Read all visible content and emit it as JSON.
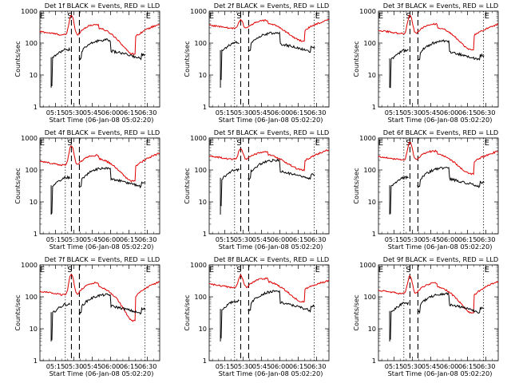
{
  "chart_data": {
    "type": "line",
    "ylabel": "Counts/sec",
    "xlabel": "Start Time (06-Jan-08 05:02:20)",
    "y_scale": "log",
    "ylim": [
      1,
      1000
    ],
    "y_tick_labels": [
      "1",
      "10",
      "100",
      "1000"
    ],
    "x_tick_labels": [
      "05:15",
      "05:30",
      "05:45",
      "06:00",
      "06:15",
      "06:30"
    ],
    "marker_letters": {
      "start": "S",
      "end": "E"
    },
    "series_names": [
      "Events",
      "LLD"
    ],
    "series_colors": {
      "Events": "#000000",
      "LLD": "#e00000"
    },
    "panels": [
      {
        "title": "Det 1f BLACK = Events, RED = LLD"
      },
      {
        "title": "Det 2f BLACK = Events, RED = LLD"
      },
      {
        "title": "Det 3f BLACK = Events, RED = LLD"
      },
      {
        "title": "Det 4f BLACK = Events, RED = LLD"
      },
      {
        "title": "Det 5f BLACK = Events, RED = LLD"
      },
      {
        "title": "Det 6f BLACK = Events, RED = LLD"
      },
      {
        "title": "Det 7f BLACK = Events, RED = LLD"
      },
      {
        "title": "Det 8f BLACK = Events, RED = LLD"
      },
      {
        "title": "Det 9f BLACK = Events, RED = LLD"
      }
    ]
  }
}
